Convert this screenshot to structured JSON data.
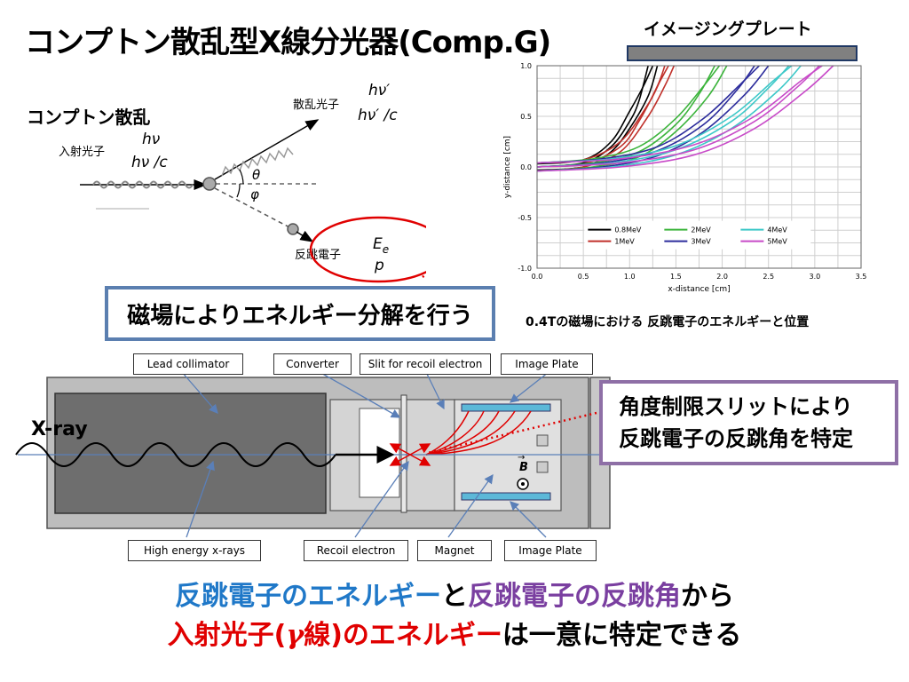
{
  "title": "コンプトン散乱型X線分光器(Comp.G)",
  "imaging_plate_label": "イメージングプレート",
  "compton": {
    "heading": "コンプトン散乱",
    "incident_label": "入射光子",
    "incident_energy": "hν",
    "incident_momentum": "hν /c",
    "scattered_label": "散乱光子",
    "scattered_energy": "hν′",
    "scattered_momentum": "hν′ /c",
    "theta": "θ",
    "phi": "φ",
    "recoil_label": "反跳電子",
    "recoil_energy": "E",
    "recoil_energy_sub": "e",
    "recoil_momentum": "p"
  },
  "magnet_note": "磁場によりエネルギー分解を行う",
  "chart_caption": "0.4Tの磁場における 反跳電子のエネルギーと位置",
  "slit_note": {
    "line1": "角度制限スリットにより",
    "line2": "反跳電子の反跳角を特定"
  },
  "apparatus": {
    "xray_label": "X-ray",
    "b_label": "B",
    "callouts": {
      "lead_collimator": "Lead collimator",
      "converter": "Converter",
      "slit": "Slit for recoil electron",
      "image_plate_top": "Image Plate",
      "high_energy": "High energy x-rays",
      "recoil_electron": "Recoil electron",
      "magnet": "Magnet",
      "image_plate_bottom": "Image Plate"
    }
  },
  "bottom": {
    "part1": "反跳電子のエネルギー",
    "part2": "と",
    "part3": "反跳電子の反跳角",
    "part4": "から",
    "part5": "入射光子(",
    "part6": "γ",
    "part7": "線)のエネルギー",
    "part8": "は一意に特定できる"
  },
  "colors": {
    "blue": "#1f78c8",
    "purple": "#7a3fa0",
    "red": "#e00000",
    "box_border": "#5b7fb0"
  },
  "chart_data": {
    "type": "line",
    "xlabel": "x-distance [cm]",
    "ylabel": "y-distance [cm]",
    "xlim": [
      0.0,
      3.5
    ],
    "ylim": [
      -1.0,
      1.0
    ],
    "xticks": [
      "0.0",
      "0.5",
      "1.0",
      "1.5",
      "2.0",
      "2.5",
      "3.0",
      "3.5"
    ],
    "yticks": [
      "-1.0",
      "-0.5",
      "0.0",
      "0.5",
      "1.0"
    ],
    "grid": true,
    "legend_position": "bottom-center",
    "series": [
      {
        "name": "0.8MeV",
        "color": "#000000",
        "curves": [
          [
            [
              0.0,
              0.0
            ],
            [
              0.5,
              0.04
            ],
            [
              0.8,
              0.2
            ],
            [
              1.0,
              0.45
            ],
            [
              1.1,
              0.65
            ],
            [
              1.2,
              1.0
            ]
          ],
          [
            [
              0.0,
              0.03
            ],
            [
              0.5,
              0.07
            ],
            [
              0.8,
              0.25
            ],
            [
              1.0,
              0.55
            ],
            [
              1.15,
              0.8
            ],
            [
              1.25,
              1.0
            ]
          ],
          [
            [
              0.0,
              -0.03
            ],
            [
              0.5,
              0.0
            ],
            [
              0.8,
              0.15
            ],
            [
              1.0,
              0.38
            ],
            [
              1.2,
              0.7
            ],
            [
              1.3,
              1.0
            ]
          ]
        ]
      },
      {
        "name": "1MeV",
        "color": "#c0302a",
        "curves": [
          [
            [
              0.0,
              0.0
            ],
            [
              0.5,
              0.03
            ],
            [
              0.9,
              0.2
            ],
            [
              1.1,
              0.45
            ],
            [
              1.3,
              0.8
            ],
            [
              1.38,
              1.0
            ]
          ],
          [
            [
              0.0,
              0.04
            ],
            [
              0.5,
              0.07
            ],
            [
              0.9,
              0.25
            ],
            [
              1.2,
              0.62
            ],
            [
              1.33,
              0.85
            ],
            [
              1.42,
              1.0
            ]
          ],
          [
            [
              0.0,
              -0.04
            ],
            [
              0.5,
              0.0
            ],
            [
              0.9,
              0.15
            ],
            [
              1.2,
              0.5
            ],
            [
              1.38,
              0.8
            ],
            [
              1.48,
              1.0
            ]
          ]
        ]
      },
      {
        "name": "2MeV",
        "color": "#3cb43c",
        "curves": [
          [
            [
              0.0,
              0.0
            ],
            [
              0.6,
              0.04
            ],
            [
              1.1,
              0.15
            ],
            [
              1.5,
              0.42
            ],
            [
              1.75,
              0.72
            ],
            [
              1.92,
              1.0
            ]
          ],
          [
            [
              0.0,
              0.04
            ],
            [
              0.6,
              0.08
            ],
            [
              1.1,
              0.2
            ],
            [
              1.5,
              0.48
            ],
            [
              1.8,
              0.8
            ],
            [
              1.97,
              1.0
            ]
          ],
          [
            [
              0.0,
              -0.04
            ],
            [
              0.6,
              0.0
            ],
            [
              1.1,
              0.1
            ],
            [
              1.5,
              0.35
            ],
            [
              1.85,
              0.7
            ],
            [
              2.05,
              1.0
            ]
          ]
        ]
      },
      {
        "name": "3MeV",
        "color": "#2c2c9c",
        "curves": [
          [
            [
              0.0,
              0.0
            ],
            [
              0.7,
              0.04
            ],
            [
              1.3,
              0.16
            ],
            [
              1.8,
              0.42
            ],
            [
              2.15,
              0.75
            ],
            [
              2.35,
              1.0
            ]
          ],
          [
            [
              0.0,
              0.04
            ],
            [
              0.7,
              0.08
            ],
            [
              1.3,
              0.2
            ],
            [
              1.8,
              0.48
            ],
            [
              2.2,
              0.82
            ],
            [
              2.4,
              1.0
            ]
          ],
          [
            [
              0.0,
              -0.04
            ],
            [
              0.7,
              0.0
            ],
            [
              1.3,
              0.11
            ],
            [
              1.8,
              0.35
            ],
            [
              2.25,
              0.72
            ],
            [
              2.5,
              1.0
            ]
          ]
        ]
      },
      {
        "name": "4MeV",
        "color": "#3cc8c8",
        "curves": [
          [
            [
              0.0,
              0.0
            ],
            [
              0.8,
              0.04
            ],
            [
              1.5,
              0.17
            ],
            [
              2.1,
              0.45
            ],
            [
              2.5,
              0.78
            ],
            [
              2.72,
              1.0
            ]
          ],
          [
            [
              0.0,
              0.04
            ],
            [
              0.8,
              0.08
            ],
            [
              1.5,
              0.21
            ],
            [
              2.1,
              0.5
            ],
            [
              2.55,
              0.85
            ],
            [
              2.75,
              1.0
            ]
          ],
          [
            [
              0.0,
              -0.04
            ],
            [
              0.8,
              0.0
            ],
            [
              1.5,
              0.12
            ],
            [
              2.1,
              0.38
            ],
            [
              2.6,
              0.75
            ],
            [
              2.85,
              1.0
            ]
          ]
        ]
      },
      {
        "name": "5MeV",
        "color": "#c84ac8",
        "curves": [
          [
            [
              0.0,
              0.0
            ],
            [
              0.9,
              0.04
            ],
            [
              1.7,
              0.17
            ],
            [
              2.35,
              0.45
            ],
            [
              2.8,
              0.78
            ],
            [
              3.05,
              1.0
            ]
          ],
          [
            [
              0.0,
              0.04
            ],
            [
              0.9,
              0.08
            ],
            [
              1.7,
              0.22
            ],
            [
              2.35,
              0.5
            ],
            [
              2.85,
              0.85
            ],
            [
              3.08,
              1.0
            ]
          ],
          [
            [
              0.0,
              -0.04
            ],
            [
              0.9,
              0.0
            ],
            [
              1.7,
              0.12
            ],
            [
              2.35,
              0.38
            ],
            [
              2.9,
              0.75
            ],
            [
              3.2,
              1.0
            ]
          ]
        ]
      }
    ]
  }
}
